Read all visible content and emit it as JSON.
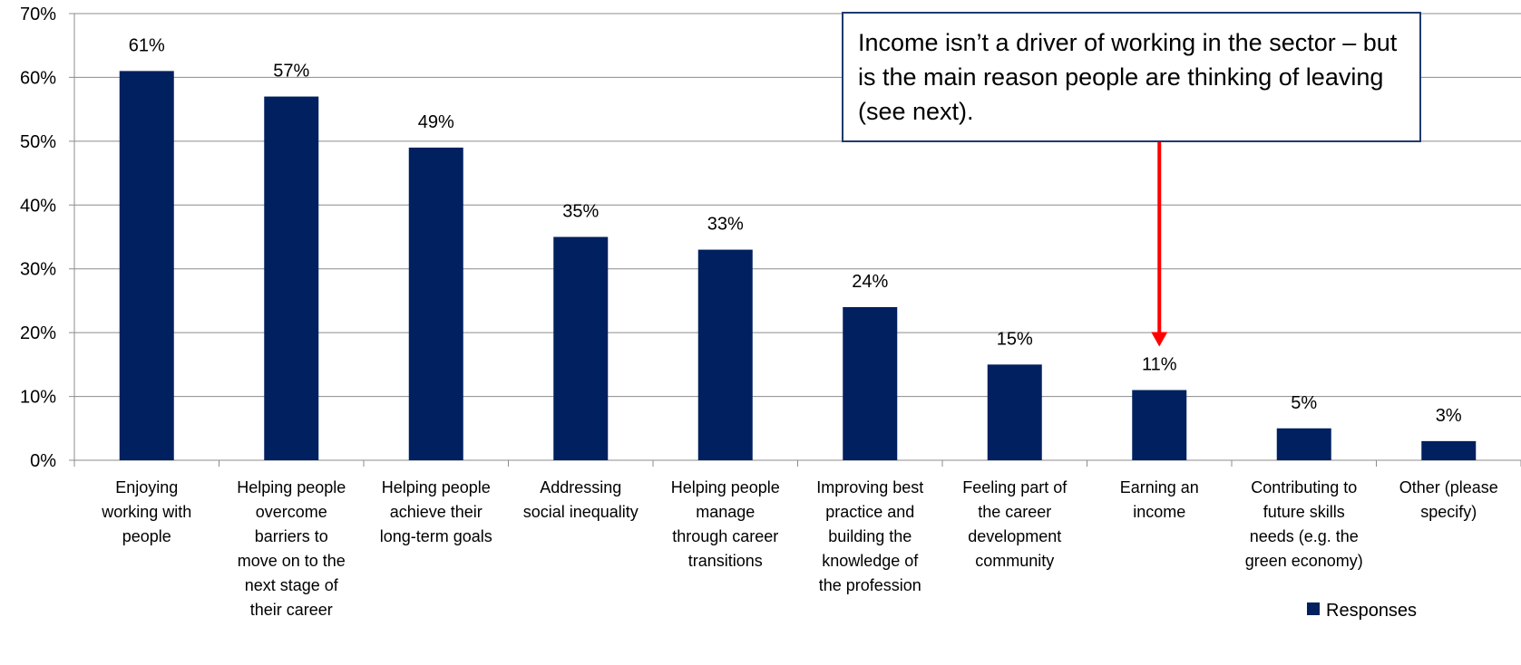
{
  "chart_data": {
    "type": "bar",
    "categories": [
      [
        "Enjoying",
        "working with",
        "people"
      ],
      [
        "Helping people",
        "overcome",
        "barriers to",
        "move on to the",
        "next stage of",
        "their career"
      ],
      [
        "Helping people",
        "achieve their",
        "long-term goals"
      ],
      [
        "Addressing",
        "social inequality"
      ],
      [
        "Helping people",
        "manage",
        "through career",
        "transitions"
      ],
      [
        "Improving best",
        "practice and",
        "building the",
        "knowledge of",
        "the profession"
      ],
      [
        "Feeling part of",
        "the career",
        "development",
        "community"
      ],
      [
        "Earning an",
        "income"
      ],
      [
        "Contributing to",
        "future skills",
        "needs (e.g. the",
        "green economy)"
      ],
      [
        "Other (please",
        "specify)"
      ]
    ],
    "series": [
      {
        "name": "Responses",
        "values": [
          61,
          57,
          49,
          35,
          33,
          24,
          15,
          11,
          5,
          3
        ],
        "labels": [
          "61%",
          "57%",
          "49%",
          "35%",
          "33%",
          "24%",
          "15%",
          "11%",
          "5%",
          "3%"
        ],
        "color": "#002060"
      }
    ],
    "ylim": [
      0,
      70
    ],
    "yticks": [
      "0%",
      "10%",
      "20%",
      "30%",
      "40%",
      "50%",
      "60%",
      "70%"
    ],
    "grid": true,
    "legend_position": "bottom-right",
    "annotation": {
      "text": "Income isn’t a driver of working in the sector – but is the main reason people are thinking of leaving (see next).",
      "arrow_target_category_index": 7,
      "arrow_color": "#ff0000",
      "border_color": "#1f3a6e"
    }
  }
}
